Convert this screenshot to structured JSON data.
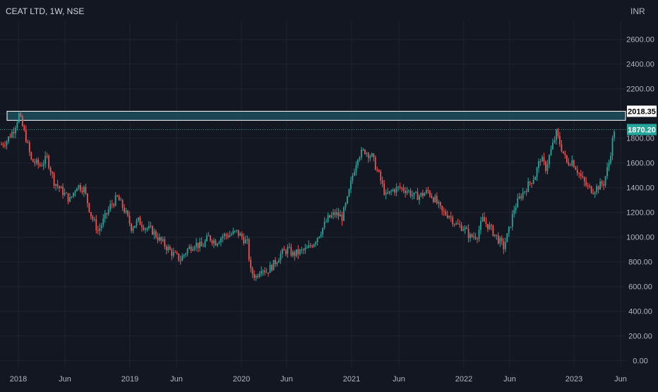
{
  "header": {
    "symbol_title": "CEAT LTD, 1W, NSE",
    "currency": "INR"
  },
  "colors": {
    "background": "#131722",
    "grid": "#1f2330",
    "up": "#26a69a",
    "down": "#ef5350",
    "text": "#b2b5be",
    "zone_fill": "#1e4d5c",
    "zone_border": "#ffffff",
    "dotted_line": "#26a69a",
    "badge_zone_bg": "#ffffff",
    "badge_zone_text": "#000000",
    "badge_last_bg": "#26a69a",
    "badge_last_text": "#ffffff"
  },
  "price_levels": {
    "zone_top": "2018.35",
    "last_price": "1870.20"
  },
  "chart_data": {
    "type": "candlestick",
    "title": "CEAT LTD, 1W, NSE",
    "ylabel": "INR",
    "ylim": [
      -50,
      2750
    ],
    "y_ticks": [
      "2600.00",
      "2400.00",
      "2200.00",
      "2000.00",
      "1800.00",
      "1600.00",
      "1400.00",
      "1200.00",
      "1000.00",
      "800.00",
      "600.00",
      "400.00",
      "200.00",
      "0.00"
    ],
    "x_ticks": [
      "2018",
      "Jun",
      "2019",
      "Jun",
      "2020",
      "Jun",
      "2021",
      "Jun",
      "2022",
      "Jun",
      "2023",
      "Jun"
    ],
    "resistance_zone": [
      1945,
      2018.35
    ],
    "last_close": 1870.2,
    "close_path": [
      [
        0,
        1750
      ],
      [
        3,
        1780
      ],
      [
        7,
        1870
      ],
      [
        10,
        1990
      ],
      [
        14,
        1800
      ],
      [
        17,
        1620
      ],
      [
        22,
        1580
      ],
      [
        26,
        1640
      ],
      [
        30,
        1450
      ],
      [
        34,
        1380
      ],
      [
        39,
        1300
      ],
      [
        43,
        1420
      ],
      [
        47,
        1390
      ],
      [
        51,
        1180
      ],
      [
        55,
        1050
      ],
      [
        58,
        1130
      ],
      [
        62,
        1250
      ],
      [
        66,
        1320
      ],
      [
        70,
        1220
      ],
      [
        74,
        1080
      ],
      [
        78,
        1130
      ],
      [
        82,
        1080
      ],
      [
        86,
        1050
      ],
      [
        90,
        980
      ],
      [
        94,
        920
      ],
      [
        98,
        860
      ],
      [
        102,
        820
      ],
      [
        106,
        900
      ],
      [
        110,
        950
      ],
      [
        114,
        920
      ],
      [
        118,
        1000
      ],
      [
        122,
        960
      ],
      [
        126,
        1010
      ],
      [
        130,
        1020
      ],
      [
        134,
        1040
      ],
      [
        137,
        1000
      ],
      [
        140,
        950
      ],
      [
        142,
        720
      ],
      [
        145,
        680
      ],
      [
        148,
        760
      ],
      [
        151,
        720
      ],
      [
        155,
        780
      ],
      [
        159,
        860
      ],
      [
        163,
        900
      ],
      [
        166,
        860
      ],
      [
        170,
        880
      ],
      [
        174,
        900
      ],
      [
        178,
        960
      ],
      [
        182,
        1050
      ],
      [
        186,
        1150
      ],
      [
        190,
        1190
      ],
      [
        194,
        1160
      ],
      [
        197,
        1300
      ],
      [
        200,
        1500
      ],
      [
        203,
        1660
      ],
      [
        207,
        1700
      ],
      [
        211,
        1650
      ],
      [
        215,
        1500
      ],
      [
        219,
        1330
      ],
      [
        223,
        1380
      ],
      [
        227,
        1400
      ],
      [
        231,
        1380
      ],
      [
        235,
        1330
      ],
      [
        239,
        1340
      ],
      [
        243,
        1370
      ],
      [
        247,
        1300
      ],
      [
        251,
        1200
      ],
      [
        255,
        1180
      ],
      [
        259,
        1100
      ],
      [
        263,
        1080
      ],
      [
        267,
        1000
      ],
      [
        271,
        1020
      ],
      [
        274,
        1140
      ],
      [
        278,
        1080
      ],
      [
        282,
        1000
      ],
      [
        286,
        920
      ],
      [
        289,
        1050
      ],
      [
        292,
        1230
      ],
      [
        296,
        1340
      ],
      [
        300,
        1420
      ],
      [
        304,
        1500
      ],
      [
        307,
        1640
      ],
      [
        310,
        1560
      ],
      [
        313,
        1700
      ],
      [
        316,
        1840
      ],
      [
        319,
        1720
      ],
      [
        322,
        1600
      ],
      [
        325,
        1620
      ],
      [
        328,
        1540
      ],
      [
        331,
        1460
      ],
      [
        334,
        1400
      ],
      [
        337,
        1380
      ],
      [
        340,
        1410
      ],
      [
        343,
        1440
      ],
      [
        346,
        1600
      ],
      [
        349,
        1870
      ]
    ]
  }
}
